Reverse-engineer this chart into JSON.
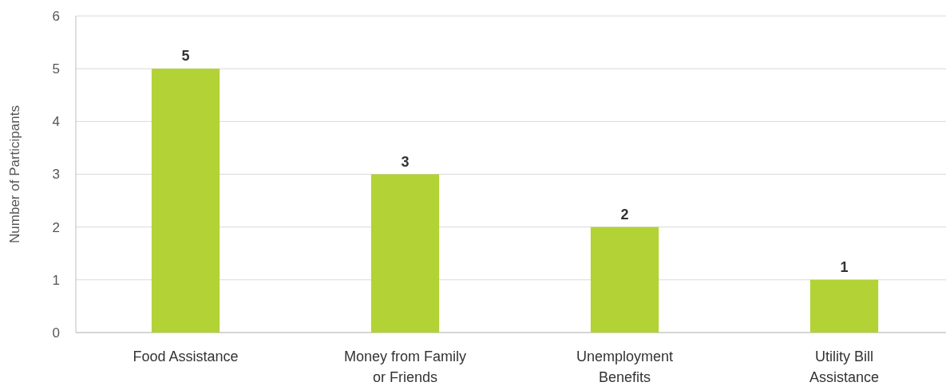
{
  "chart_data": {
    "type": "bar",
    "ylabel": "Number of Participants",
    "categories": [
      "Food Assistance",
      "Money from Family or Friends",
      "Unemployment Benefits",
      "Utility Bill Assistance"
    ],
    "values": [
      5,
      3,
      2,
      1
    ],
    "color": "#b2d235",
    "ylim": [
      0,
      6
    ],
    "yticks": [
      0,
      1,
      2,
      3,
      4,
      5,
      6
    ],
    "grid": "y",
    "data_labels": true
  }
}
